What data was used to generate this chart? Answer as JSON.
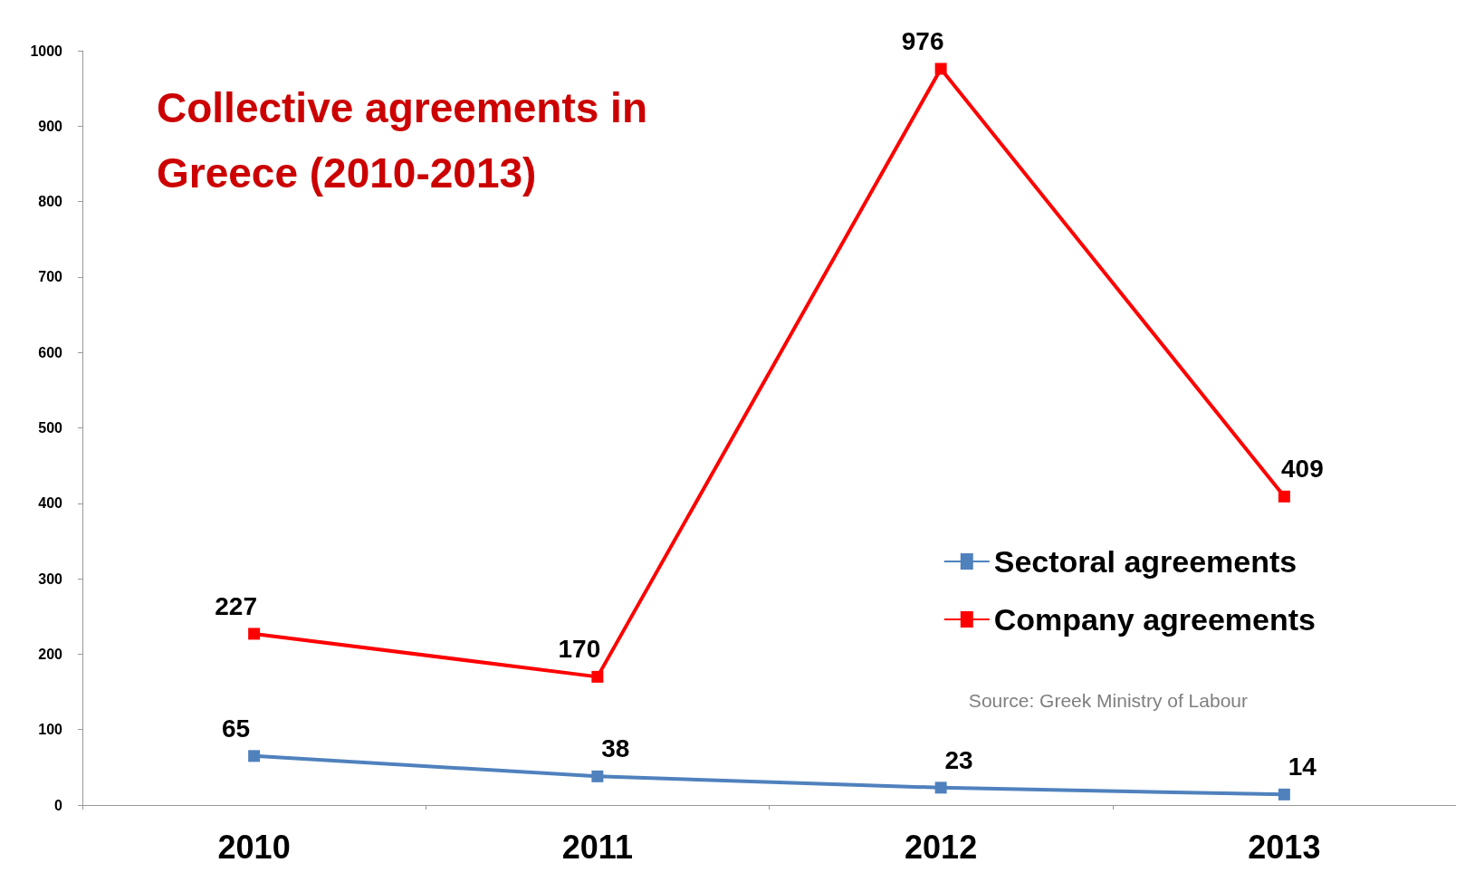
{
  "chart_data": {
    "type": "line",
    "title": "Collective agreements in Greece (2010-2013)",
    "categories": [
      "2010",
      "2011",
      "2012",
      "2013"
    ],
    "series": [
      {
        "name": "Sectoral agreements",
        "color": "#4f81bd",
        "values": [
          65,
          38,
          23,
          14
        ]
      },
      {
        "name": "Company agreements",
        "color": "#ff0000",
        "values": [
          227,
          170,
          976,
          409
        ]
      }
    ],
    "ylim": [
      0,
      1000
    ],
    "yticks": [
      0,
      100,
      200,
      300,
      400,
      500,
      600,
      700,
      800,
      900,
      1000
    ],
    "grid": false,
    "legend": "right",
    "marker": "square",
    "line_style": "solid",
    "data_labels": true,
    "annotations": [
      "Source: Greek Ministry of Labour"
    ]
  }
}
